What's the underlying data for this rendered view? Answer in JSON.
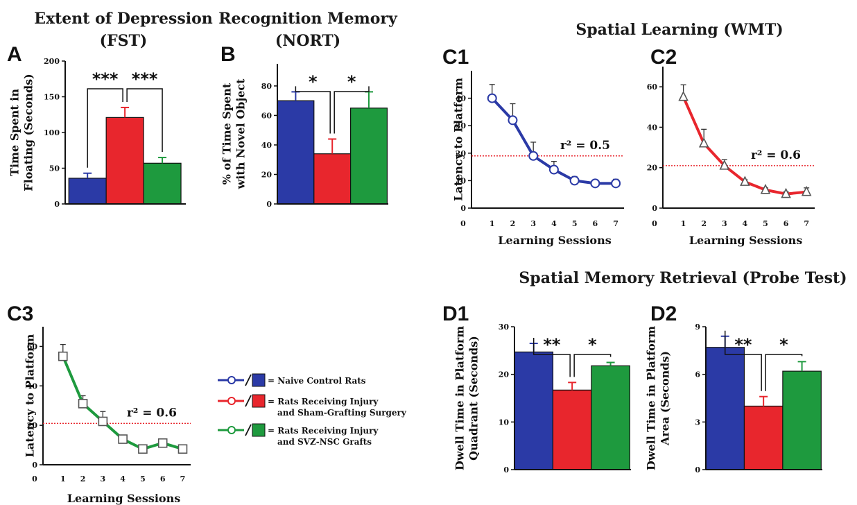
{
  "figure": {
    "colors": {
      "naive": "#2b3aa6",
      "sham": "#e8262d",
      "graft": "#1e9a3e",
      "ref": "#e8262d"
    },
    "legend": [
      {
        "label": "= Naive Control Rats",
        "label2": "",
        "color": "#2b3aa6"
      },
      {
        "label": "= Rats Receiving Injury",
        "label2": "and Sham-Grafting Surgery",
        "color": "#e8262d"
      },
      {
        "label": "= Rats Receiving Injury",
        "label2": "and SVZ-NSC Grafts",
        "color": "#1e9a3e"
      }
    ],
    "section_titles": {
      "wmt": "Spatial Learning (WMT)",
      "probe": "Spatial Memory Retrieval  (Probe Test)"
    }
  },
  "chart_data": [
    {
      "id": "A",
      "type": "bar",
      "panel": "A",
      "title": [
        "Extent of Depression",
        "(FST)"
      ],
      "ylabel": [
        "Time Spent in",
        "Floating (Seconds)"
      ],
      "ylim": [
        0,
        200
      ],
      "yticks": [
        0,
        50,
        100,
        150,
        200
      ],
      "values": [
        36,
        121,
        57
      ],
      "errors": [
        7,
        14,
        8
      ],
      "colors": [
        "#2b3aa6",
        "#e8262d",
        "#1e9a3e"
      ],
      "significance": [
        {
          "from": 0,
          "to": 1,
          "label": "***"
        },
        {
          "from": 1,
          "to": 2,
          "label": "***"
        }
      ]
    },
    {
      "id": "B",
      "type": "bar",
      "panel": "B",
      "title": [
        "Recognition Memory",
        "(NORT)"
      ],
      "ylabel": [
        "% of Time Spent",
        "with Novel Object"
      ],
      "ylim": [
        0,
        95
      ],
      "yticks": [
        0,
        20,
        40,
        60,
        80
      ],
      "values": [
        70,
        34,
        65
      ],
      "errors": [
        6,
        10,
        11
      ],
      "colors": [
        "#2b3aa6",
        "#e8262d",
        "#1e9a3e"
      ],
      "significance": [
        {
          "from": 0,
          "to": 1,
          "label": "*"
        },
        {
          "from": 1,
          "to": 2,
          "label": "*"
        }
      ]
    },
    {
      "id": "C1",
      "type": "line",
      "panel": "C1",
      "ylabel": [
        "Latency to Platform"
      ],
      "xlabel": "Learning Sessions",
      "ylim": [
        0,
        50
      ],
      "yticks": [
        0,
        10,
        20,
        30,
        40
      ],
      "xticks": [
        0,
        1,
        2,
        3,
        4,
        5,
        6,
        7
      ],
      "x": [
        1,
        2,
        3,
        4,
        5,
        6,
        7
      ],
      "y": [
        40,
        32,
        19,
        14,
        10,
        9,
        9
      ],
      "err": [
        5,
        6,
        5,
        3,
        1.5,
        1,
        1.5
      ],
      "marker": "circle",
      "color": "#2b3aa6",
      "ref_y": 19,
      "annotation": "r² = 0.5"
    },
    {
      "id": "C2",
      "type": "line",
      "panel": "C2",
      "ylabel": [],
      "xlabel": "Learning Sessions",
      "ylim": [
        0,
        70
      ],
      "yticks": [
        0,
        20,
        40,
        60
      ],
      "xticks": [
        0,
        1,
        2,
        3,
        4,
        5,
        6,
        7
      ],
      "x": [
        1,
        2,
        3,
        4,
        5,
        6,
        7
      ],
      "y": [
        55,
        32,
        21,
        13,
        9,
        7,
        8
      ],
      "err": [
        6,
        7,
        3,
        1,
        1,
        1,
        2
      ],
      "marker": "triangle",
      "color": "#e8262d",
      "ref_y": 21,
      "annotation": "r² = 0.6"
    },
    {
      "id": "C3",
      "type": "line",
      "panel": "C3",
      "ylabel": [
        "Latency to Platform"
      ],
      "xlabel": "Learning Sessions",
      "ylim": [
        0,
        70
      ],
      "yticks": [
        0,
        20,
        40,
        60
      ],
      "xticks": [
        0,
        1,
        2,
        3,
        4,
        5,
        6,
        7
      ],
      "x": [
        1,
        2,
        3,
        4,
        5,
        6,
        7
      ],
      "y": [
        55,
        31,
        22,
        13,
        8,
        11,
        8
      ],
      "err": [
        6,
        4,
        5,
        1.5,
        1,
        2,
        1
      ],
      "marker": "square",
      "color": "#1e9a3e",
      "ref_y": 21,
      "annotation": "r² = 0.6"
    },
    {
      "id": "D1",
      "type": "bar",
      "panel": "D1",
      "ylabel": [
        "Dwell Time in Platform",
        "Quadrant (Seconds)"
      ],
      "ylim": [
        0,
        30
      ],
      "yticks": [
        0,
        10,
        20,
        30
      ],
      "values": [
        24.7,
        16.7,
        21.8
      ],
      "errors": [
        1.8,
        1.6,
        0.7
      ],
      "colors": [
        "#2b3aa6",
        "#e8262d",
        "#1e9a3e"
      ],
      "significance": [
        {
          "from": 0,
          "to": 1,
          "label": "**"
        },
        {
          "from": 1,
          "to": 2,
          "label": "*"
        }
      ]
    },
    {
      "id": "D2",
      "type": "bar",
      "panel": "D2",
      "ylabel": [
        "Dwell Time in Platform",
        "Area (Seconds)"
      ],
      "ylim": [
        0,
        9
      ],
      "yticks": [
        0,
        3,
        6,
        9
      ],
      "values": [
        7.7,
        4.0,
        6.2
      ],
      "errors": [
        0.7,
        0.6,
        0.6
      ],
      "colors": [
        "#2b3aa6",
        "#e8262d",
        "#1e9a3e"
      ],
      "significance": [
        {
          "from": 0,
          "to": 1,
          "label": "**"
        },
        {
          "from": 1,
          "to": 2,
          "label": "*"
        }
      ]
    }
  ]
}
